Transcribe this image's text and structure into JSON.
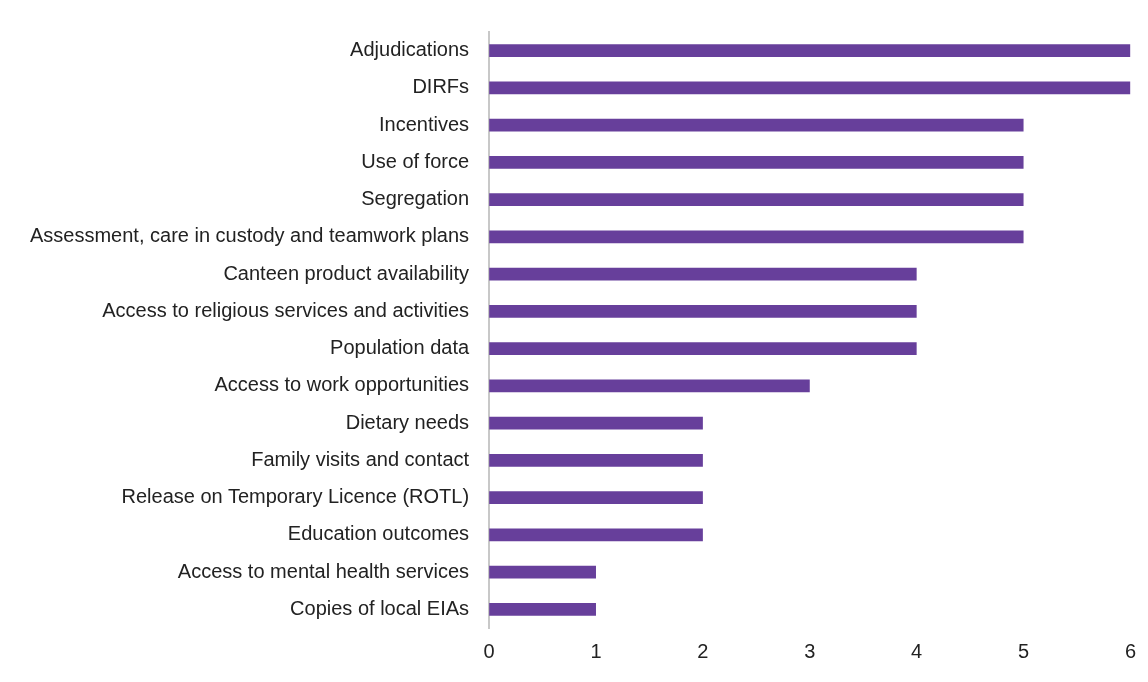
{
  "chart_data": {
    "type": "bar",
    "orientation": "horizontal",
    "categories": [
      "Adjudications",
      "DIRFs",
      "Incentives",
      "Use of force",
      "Segregation",
      "Assessment, care in custody and teamwork plans",
      "Canteen product availability",
      "Access to religious services and activities",
      "Population data",
      "Access to work opportunities",
      "Dietary needs",
      "Family visits and contact",
      "Release on Temporary Licence (ROTL)",
      "Education outcomes",
      "Access to mental health services",
      "Copies of local EIAs"
    ],
    "values": [
      6,
      6,
      5,
      5,
      5,
      5,
      4,
      4,
      4,
      3,
      2,
      2,
      2,
      2,
      1,
      1
    ],
    "color": "#673f9b",
    "xlim": [
      0,
      6
    ],
    "xticks": [
      0,
      1,
      2,
      3,
      4,
      5,
      6
    ],
    "grid": false,
    "legend": false
  }
}
